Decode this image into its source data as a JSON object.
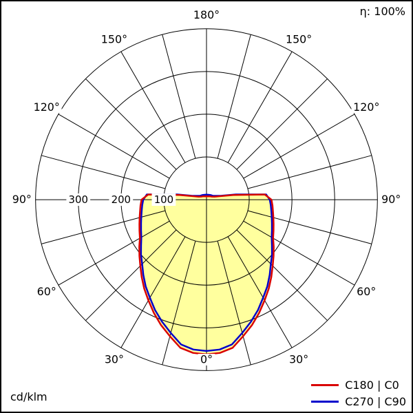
{
  "header": {
    "efficiency": "η: 100%"
  },
  "footer": {
    "unit": "cd/klm"
  },
  "legend": {
    "items": [
      {
        "label": "C180 | C0",
        "color": "#d90000"
      },
      {
        "label": "C270 | C90",
        "color": "#0000cc"
      }
    ]
  },
  "chart_data": {
    "type": "polar-line",
    "description": "Luminous intensity distribution curve (polar photometric diagram), intensity in cd/klm, 0° at nadir (bottom), 180° at zenith (top)",
    "unit": "cd/klm",
    "efficiency_percent": 100,
    "radial_max": 400,
    "rings": [
      100,
      200,
      300,
      400
    ],
    "radial_ticks": [
      100,
      200,
      300
    ],
    "radial_tick_labels": [
      "100",
      "200",
      "300"
    ],
    "spoke_step_deg": 15,
    "angle_ticks": [
      {
        "deg": 0,
        "label": "0°"
      },
      {
        "deg": 30,
        "label": "30°"
      },
      {
        "deg": 60,
        "label": "60°"
      },
      {
        "deg": 90,
        "label": "90°"
      },
      {
        "deg": 120,
        "label": "120°"
      },
      {
        "deg": 150,
        "label": "150°"
      },
      {
        "deg": 180,
        "label": "180°"
      }
    ],
    "gamma_deg": [
      0,
      5,
      10,
      15,
      20,
      25,
      30,
      35,
      40,
      45,
      50,
      55,
      60,
      65,
      70,
      75,
      80,
      85,
      90,
      95,
      100,
      105,
      110,
      120,
      135,
      150,
      165,
      180
    ],
    "series": [
      {
        "name": "C180 | C0",
        "color": "#d90000",
        "values": [
          362,
          360,
          352,
          331,
          312,
          292,
          272,
          254,
          236,
          219,
          205,
          192,
          180,
          173,
          167,
          162,
          158,
          155,
          152,
          137,
          64,
          30,
          20,
          14,
          11,
          9,
          8,
          8
        ]
      },
      {
        "name": "C270 | C90",
        "color": "#0000cc",
        "values": [
          354,
          352,
          344,
          323,
          304,
          285,
          265,
          248,
          230,
          213,
          200,
          187,
          176,
          169,
          163,
          158,
          154,
          151,
          148,
          140,
          70,
          36,
          26,
          18,
          15,
          13,
          12,
          12
        ]
      }
    ],
    "fill_color": "#ffff9e",
    "grid_color": "#000000",
    "legend_position": "bottom-right",
    "grid": true
  }
}
